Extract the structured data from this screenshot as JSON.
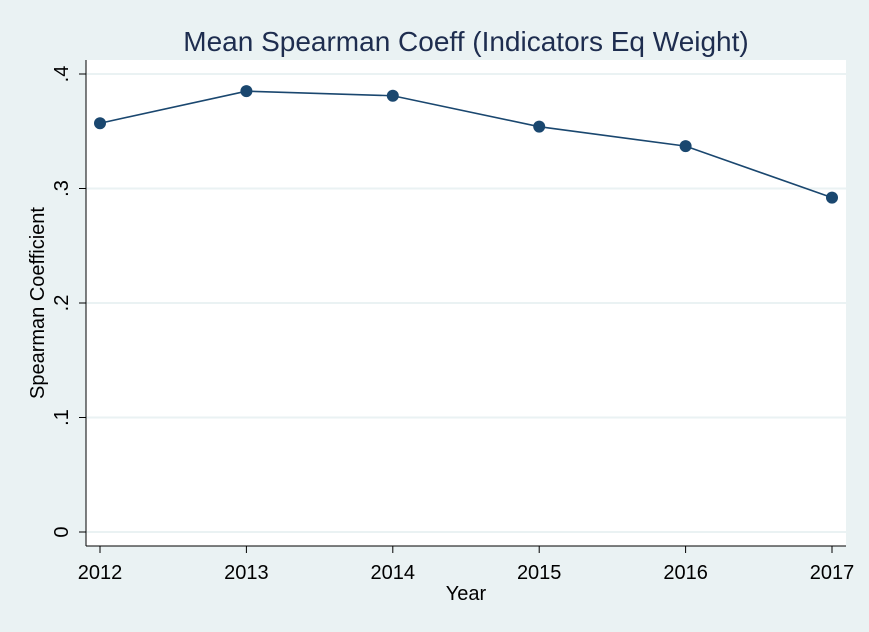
{
  "chart_data": {
    "type": "line",
    "title": "Mean Spearman Coeff (Indicators Eq Weight)",
    "xlabel": "Year",
    "ylabel": "Spearman Coefficient",
    "x": [
      2012,
      2013,
      2014,
      2015,
      2016,
      2017
    ],
    "x_tick_labels": [
      "2012",
      "2013",
      "2014",
      "2015",
      "2016",
      "2017"
    ],
    "y_ticks": [
      0,
      0.1,
      0.2,
      0.3,
      0.4
    ],
    "y_tick_labels": [
      "0",
      ".1",
      ".2",
      ".3",
      ".4"
    ],
    "ylim": [
      0,
      0.4
    ],
    "xlim": [
      2012,
      2017
    ],
    "grid": true,
    "series": [
      {
        "values": [
          0.357,
          0.385,
          0.381,
          0.354,
          0.337,
          0.292
        ]
      }
    ],
    "colors": {
      "background": "#eaf2f3",
      "plot_area": "#ffffff",
      "grid": "#eaf2f3",
      "series": "#1a476f",
      "title": "#1e2d4f",
      "text": "#000000"
    }
  }
}
